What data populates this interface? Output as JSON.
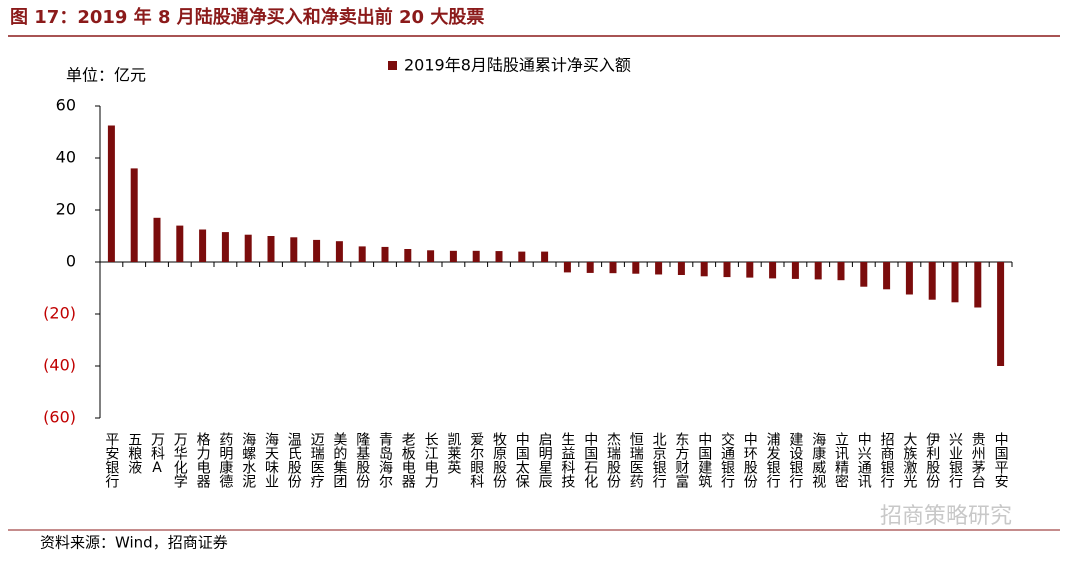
{
  "chart_data": {
    "type": "bar",
    "title": "图 17：2019 年 8 月陆股通净买入和净卖出前 20 大股票",
    "unit_label": "单位：亿元",
    "source": "资料来源：Wind，招商证券",
    "watermark": "招商策略研究",
    "categories": [
      "平安银行",
      "五粮液",
      "万科A",
      "万华化学",
      "格力电器",
      "药明康德",
      "海螺水泥",
      "海天味业",
      "温氏股份",
      "迈瑞医疗",
      "美的集团",
      "隆基股份",
      "青岛海尔",
      "老板电器",
      "长江电力",
      "凯莱英",
      "爱尔眼科",
      "牧原股份",
      "中国太保",
      "启明星辰",
      "生益科技",
      "中国石化",
      "杰瑞股份",
      "恒瑞医药",
      "北京银行",
      "东方财富",
      "中国建筑",
      "交通银行",
      "中环股份",
      "浦发银行",
      "建设银行",
      "海康威视",
      "立讯精密",
      "中兴通讯",
      "招商银行",
      "大族激光",
      "伊利股份",
      "兴业银行",
      "贵州茅台",
      "中国平安"
    ],
    "series": [
      {
        "name": "2019年8月陆股通累计净买入额",
        "color": "#7b0c0c",
        "values": [
          52.5,
          36,
          17,
          14,
          12.5,
          11.5,
          10.5,
          10,
          9.5,
          8.5,
          8,
          6,
          5.8,
          5,
          4.5,
          4.3,
          4.3,
          4.2,
          4,
          4,
          -4,
          -4.2,
          -4.3,
          -4.5,
          -4.8,
          -5,
          -5.5,
          -5.8,
          -6,
          -6.3,
          -6.5,
          -6.7,
          -7,
          -9.5,
          -10.5,
          -12.5,
          -14.5,
          -15.5,
          -17.5,
          -40
        ]
      }
    ],
    "ylim": [
      -60,
      60
    ],
    "yticks": [
      60,
      40,
      20,
      0,
      {
        "value": -20,
        "label": "(20)"
      },
      {
        "value": -40,
        "label": "(40)"
      },
      {
        "value": -60,
        "label": "(60)"
      }
    ],
    "negative_tick_color": "#c00000",
    "grid": false,
    "legend": "top"
  }
}
